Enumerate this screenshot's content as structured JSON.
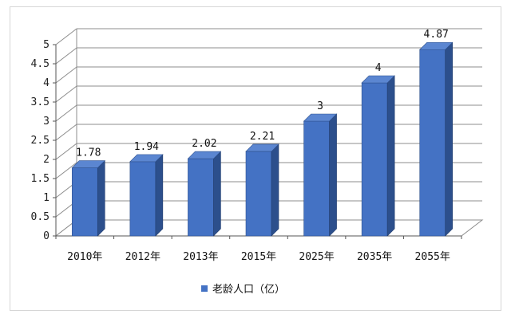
{
  "chart_data": {
    "type": "bar",
    "categories": [
      "2010年",
      "2012年",
      "2013年",
      "2015年",
      "2025年",
      "2035年",
      "2055年"
    ],
    "series": [
      {
        "name": "老龄人口（亿）",
        "values": [
          1.78,
          1.94,
          2.02,
          2.21,
          3,
          4,
          4.87
        ],
        "color": "#4472C4"
      }
    ],
    "data_labels": [
      "1.78",
      "1.94",
      "2.02",
      "2.21",
      "3",
      "4",
      "4.87"
    ],
    "y_ticks": [
      "0",
      "0.5",
      "1",
      "1.5",
      "2",
      "2.5",
      "3",
      "3.5",
      "4",
      "4.5",
      "5"
    ],
    "ylim": [
      0,
      5
    ],
    "grid": true,
    "style": "3d",
    "legend_position": "bottom"
  }
}
